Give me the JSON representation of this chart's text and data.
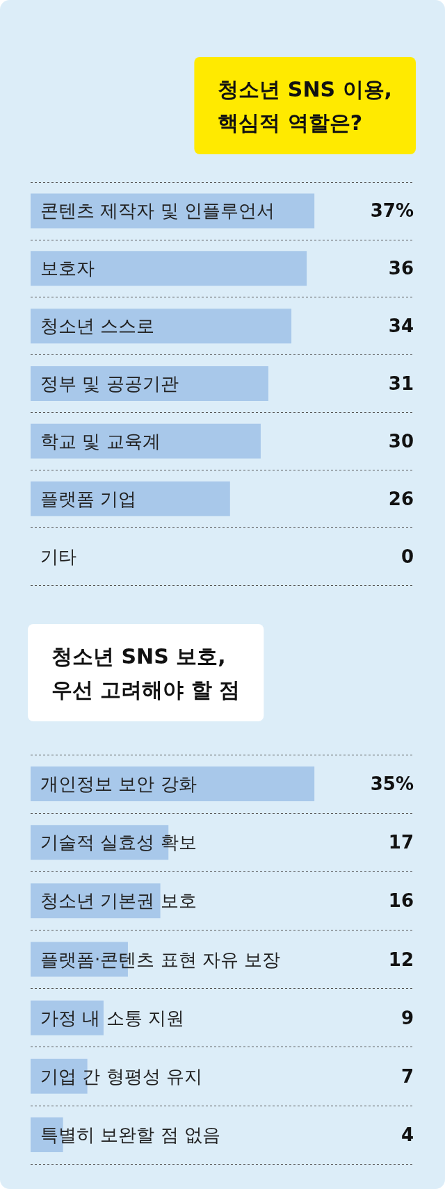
{
  "chart_data": [
    {
      "type": "bar",
      "orientation": "horizontal",
      "title": "청소년 SNS 이용,\n핵심적 역할은?",
      "categories": [
        "콘텐츠 제작자 및 인플루언서",
        "보호자",
        "청소년 스스로",
        "정부 및 공공기관",
        "학교 및 교육계",
        "플랫폼 기업",
        "기타"
      ],
      "values": [
        37,
        36,
        34,
        31,
        30,
        26,
        0
      ],
      "value_labels": [
        "37%",
        "36",
        "34",
        "31",
        "30",
        "26",
        "0"
      ],
      "color": "#a8c8ea",
      "grid": "y"
    },
    {
      "type": "bar",
      "orientation": "horizontal",
      "title": "청소년 SNS 보호,\n우선 고려해야 할 점",
      "categories": [
        "개인정보 보안 강화",
        "기술적 실효성 확보",
        "청소년 기본권 보호",
        "플랫폼·콘텐츠 표현 자유 보장",
        "가정 내 소통 지원",
        "기업 간 형평성 유지",
        "특별히 보완할 점 없음"
      ],
      "values": [
        35,
        17,
        16,
        12,
        9,
        7,
        4
      ],
      "value_labels": [
        "35%",
        "17",
        "16",
        "12",
        "9",
        "7",
        "4"
      ],
      "color": "#a8c8ea",
      "grid": "y"
    }
  ]
}
